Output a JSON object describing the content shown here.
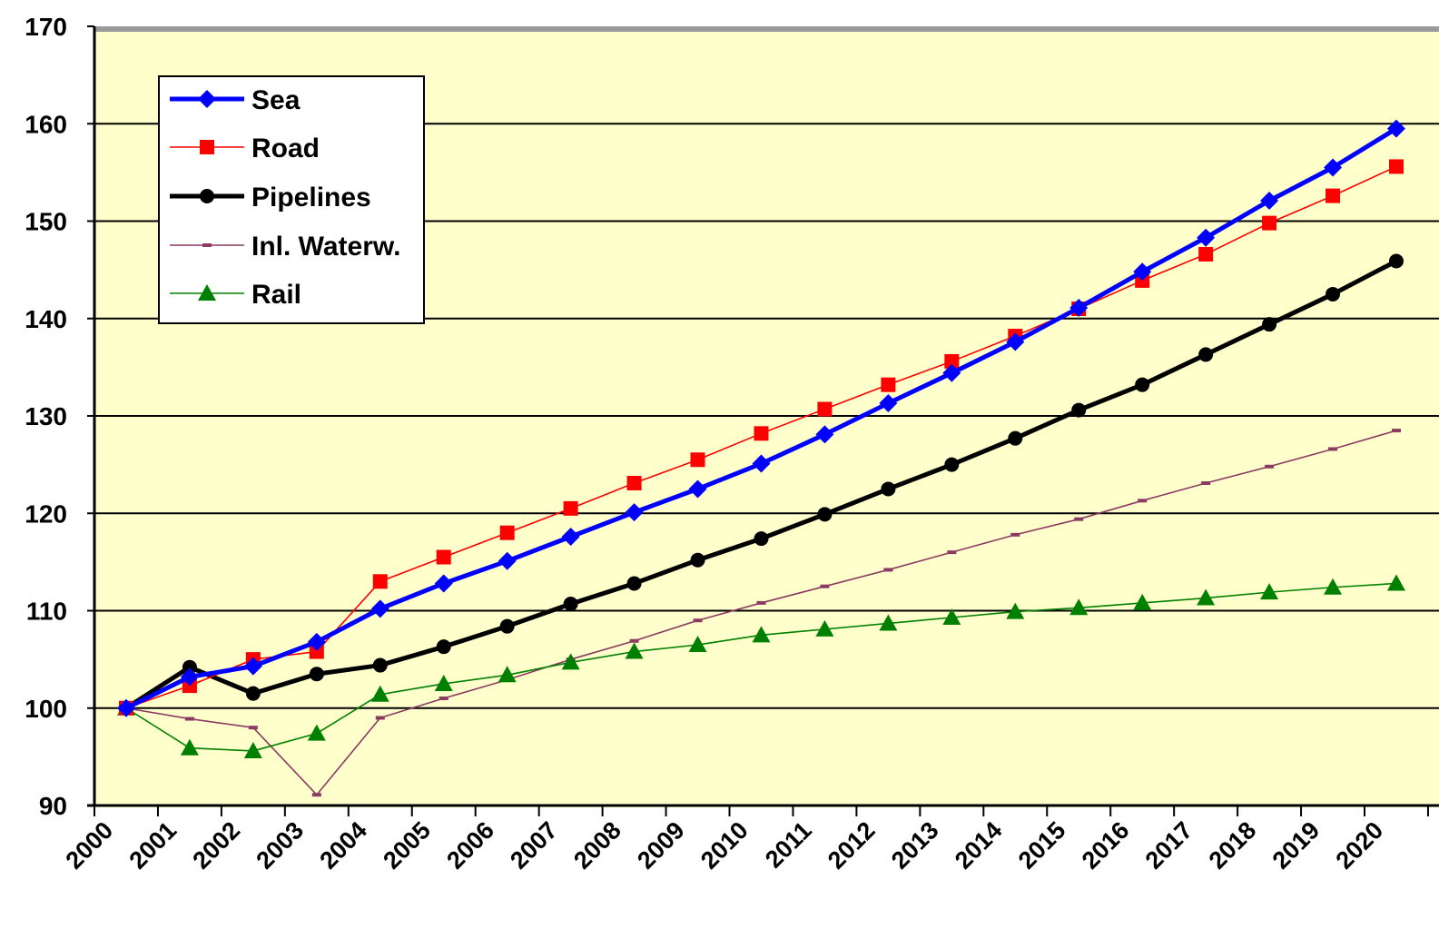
{
  "chart_data": {
    "type": "line",
    "title": "",
    "xlabel": "",
    "ylabel": "",
    "ylim": [
      90,
      170
    ],
    "yticks": [
      90,
      100,
      110,
      120,
      130,
      140,
      150,
      160,
      170
    ],
    "categories": [
      "2000",
      "2001",
      "2002",
      "2003",
      "2004",
      "2005",
      "2006",
      "2007",
      "2008",
      "2009",
      "2010",
      "2011",
      "2012",
      "2013",
      "2014",
      "2015",
      "2016",
      "2017",
      "2018",
      "2019",
      "2020"
    ],
    "grid": "horizontal",
    "legend_position": "top-left",
    "plot_background": "#FFFFCC",
    "series": [
      {
        "name": "Sea",
        "color": "#0000FF",
        "marker": "diamond",
        "line_weight": "thick",
        "values": [
          100,
          103.2,
          104.3,
          106.8,
          110.2,
          112.8,
          115.1,
          117.6,
          120.1,
          122.5,
          125.1,
          128.1,
          131.3,
          134.4,
          137.6,
          141.1,
          144.8,
          148.3,
          152.1,
          155.5,
          159.5
        ]
      },
      {
        "name": "Road",
        "color": "#FF0000",
        "marker": "square",
        "line_weight": "thin",
        "values": [
          100,
          102.3,
          105,
          105.8,
          113,
          115.5,
          118,
          120.5,
          123.1,
          125.5,
          128.2,
          130.7,
          133.2,
          135.6,
          138.2,
          141,
          143.9,
          146.6,
          149.8,
          152.6,
          155.6
        ]
      },
      {
        "name": "Pipelines",
        "color": "#000000",
        "marker": "circle",
        "line_weight": "thick",
        "values": [
          100,
          104.2,
          101.5,
          103.5,
          104.4,
          106.3,
          108.4,
          110.7,
          112.8,
          115.2,
          117.4,
          119.9,
          122.5,
          125,
          127.7,
          130.6,
          133.2,
          136.3,
          139.4,
          142.5,
          145.9
        ]
      },
      {
        "name": "Inl. Waterw.",
        "color": "#8B3A62",
        "marker": "dash",
        "line_weight": "thin",
        "values": [
          100,
          98.9,
          98,
          91.1,
          99,
          101,
          102.9,
          105,
          106.9,
          109,
          110.8,
          112.5,
          114.2,
          116,
          117.8,
          119.4,
          121.3,
          123.1,
          124.8,
          126.6,
          128.5
        ]
      },
      {
        "name": "Rail",
        "color": "#008000",
        "marker": "triangle",
        "line_weight": "thin",
        "values": [
          100,
          95.9,
          95.6,
          97.4,
          101.4,
          102.5,
          103.4,
          104.7,
          105.8,
          106.5,
          107.5,
          108.1,
          108.7,
          109.3,
          109.9,
          110.3,
          110.8,
          111.3,
          111.9,
          112.4,
          112.8
        ]
      }
    ]
  }
}
